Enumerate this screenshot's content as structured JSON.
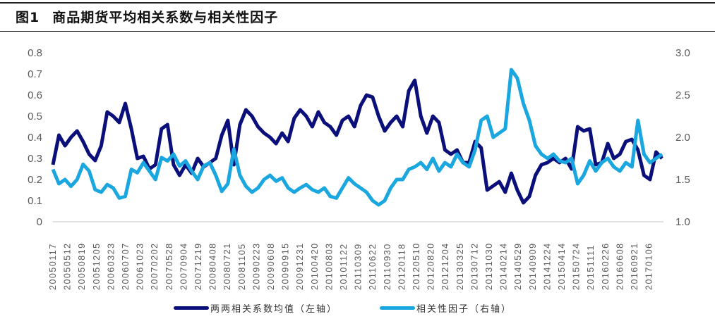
{
  "title": {
    "figure_no": "图1",
    "text": "商品期货平均相关系数与相关性因子"
  },
  "legend": [
    {
      "label": "两两相关系数均值（左轴）",
      "color": "#0a0f7a"
    },
    {
      "label": "相关性因子（右轴）",
      "color": "#1aa7e0"
    }
  ],
  "chart_data": {
    "type": "line",
    "title": "商品期货平均相关系数与相关性因子",
    "xlabel": "",
    "ylabel_left": "",
    "ylabel_right": "",
    "ylim_left": [
      0,
      0.8
    ],
    "ylim_right": [
      1.0,
      3.0
    ],
    "yticks_left": [
      "0",
      "0.1",
      "0.2",
      "0.3",
      "0.4",
      "0.5",
      "0.6",
      "0.7",
      "0.8"
    ],
    "yticks_right": [
      "1.0",
      "1.5",
      "2.0",
      "2.5",
      "3.0"
    ],
    "grid": false,
    "legend_position": "bottom",
    "x_tick_labels": [
      "20050117",
      "20050512",
      "20050819",
      "20051205",
      "20060323",
      "20060707",
      "20061023",
      "20070202",
      "20070528",
      "20070904",
      "20071219",
      "20080408",
      "20080721",
      "20081105",
      "20090223",
      "20090608",
      "20090915",
      "20091231",
      "20100420",
      "20100803",
      "20101122",
      "20110309",
      "20110622",
      "20110930",
      "20120118",
      "20120510",
      "20120820",
      "20121204",
      "20130325",
      "20130712",
      "20131030",
      "20140214",
      "20140529",
      "20140909",
      "20141224",
      "20150414",
      "20150724",
      "20151111",
      "20160226",
      "20160608",
      "20160921",
      "20170106"
    ],
    "series": [
      {
        "name": "两两相关系数均值（左轴）",
        "axis": "left",
        "color": "#0a0f7a",
        "values": [
          0.27,
          0.41,
          0.36,
          0.4,
          0.43,
          0.38,
          0.32,
          0.29,
          0.36,
          0.52,
          0.5,
          0.47,
          0.56,
          0.44,
          0.3,
          0.31,
          0.25,
          0.27,
          0.44,
          0.46,
          0.27,
          0.22,
          0.27,
          0.23,
          0.3,
          0.26,
          0.28,
          0.3,
          0.41,
          0.48,
          0.27,
          0.46,
          0.53,
          0.5,
          0.45,
          0.42,
          0.4,
          0.37,
          0.42,
          0.38,
          0.49,
          0.53,
          0.5,
          0.45,
          0.52,
          0.47,
          0.45,
          0.41,
          0.48,
          0.5,
          0.45,
          0.55,
          0.6,
          0.59,
          0.5,
          0.43,
          0.47,
          0.5,
          0.45,
          0.62,
          0.67,
          0.5,
          0.42,
          0.5,
          0.47,
          0.34,
          0.32,
          0.34,
          0.28,
          0.28,
          0.38,
          0.35,
          0.15,
          0.17,
          0.19,
          0.14,
          0.23,
          0.15,
          0.09,
          0.12,
          0.22,
          0.27,
          0.28,
          0.3,
          0.28,
          0.3,
          0.25,
          0.45,
          0.43,
          0.44,
          0.27,
          0.28,
          0.37,
          0.3,
          0.32,
          0.38,
          0.39,
          0.34,
          0.22,
          0.2,
          0.33,
          0.3
        ]
      },
      {
        "name": "相关性因子（右轴）",
        "axis": "right",
        "color": "#1aa7e0",
        "values": [
          1.62,
          1.45,
          1.5,
          1.42,
          1.5,
          1.68,
          1.6,
          1.38,
          1.35,
          1.44,
          1.4,
          1.28,
          1.3,
          1.62,
          1.58,
          1.7,
          1.6,
          1.5,
          1.76,
          1.72,
          1.8,
          1.66,
          1.72,
          1.6,
          1.5,
          1.66,
          1.7,
          1.55,
          1.36,
          1.45,
          1.86,
          1.55,
          1.42,
          1.35,
          1.4,
          1.5,
          1.55,
          1.48,
          1.52,
          1.4,
          1.35,
          1.4,
          1.44,
          1.38,
          1.35,
          1.4,
          1.3,
          1.28,
          1.4,
          1.52,
          1.45,
          1.4,
          1.35,
          1.25,
          1.2,
          1.25,
          1.4,
          1.5,
          1.5,
          1.62,
          1.65,
          1.7,
          1.62,
          1.75,
          1.6,
          1.7,
          1.65,
          1.8,
          1.7,
          1.65,
          1.85,
          2.2,
          2.25,
          2.0,
          2.05,
          2.1,
          2.8,
          2.7,
          2.4,
          2.2,
          1.9,
          1.8,
          1.75,
          1.8,
          1.72,
          1.7,
          1.75,
          1.45,
          1.55,
          1.72,
          1.6,
          1.7,
          1.75,
          1.65,
          1.6,
          1.7,
          1.65,
          2.2,
          1.8,
          1.7,
          1.75,
          1.8
        ]
      }
    ]
  }
}
